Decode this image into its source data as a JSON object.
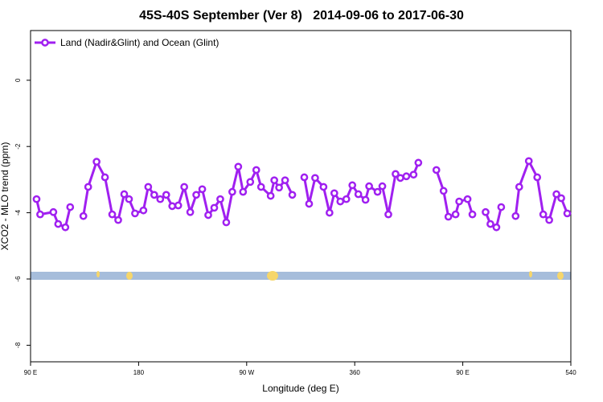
{
  "chart_data": {
    "type": "line",
    "title": "45S-40S September (Ver 8)   2014-09-06 to 2017-06-30",
    "xlabel": "Longitude (deg E)",
    "ylabel": "XCO2 - MLO trend (ppm)",
    "xlim": [
      90,
      540
    ],
    "ylim": [
      -8.5,
      1.5
    ],
    "xticks": [
      {
        "value": 90,
        "label": "90 E"
      },
      180,
      {
        "value": 270,
        "label": "90 W"
      },
      360,
      {
        "value": 450,
        "label": "90 E"
      },
      540
    ],
    "yticks": [
      0,
      -2,
      -4,
      -6,
      -8
    ],
    "legend": "top-left",
    "x": [
      95,
      98,
      109,
      113,
      119,
      123,
      128,
      134,
      138,
      145,
      152,
      158,
      163,
      168,
      172,
      177,
      184,
      188,
      193,
      198,
      203,
      208,
      213,
      218,
      223,
      228,
      233,
      238,
      243,
      248,
      253,
      258,
      263,
      267,
      273,
      278,
      282,
      290,
      293,
      297,
      302,
      308,
      313,
      318,
      322,
      327,
      334,
      339,
      343,
      348,
      353,
      358,
      363,
      369,
      372,
      379,
      383,
      388,
      394,
      398,
      403,
      409,
      413,
      420,
      428,
      434,
      438,
      444,
      447,
      454,
      458,
      463,
      469,
      473,
      478,
      482,
      488,
      494,
      497,
      505,
      512,
      517,
      522,
      528,
      532,
      537
    ],
    "series": [
      {
        "name": "Land (Nadir&Glint) and Ocean (Glint)",
        "color": "#a020f0",
        "values": [
          -3.59,
          -4.05,
          -3.98,
          -4.34,
          -4.44,
          -3.83,
          null,
          -4.1,
          -3.22,
          -2.46,
          -2.93,
          -4.05,
          -4.22,
          -3.44,
          -3.59,
          -4.02,
          -3.93,
          -3.22,
          -3.46,
          -3.59,
          -3.46,
          -3.8,
          -3.78,
          -3.22,
          -3.98,
          -3.46,
          -3.29,
          -4.07,
          -3.85,
          -3.59,
          -4.29,
          -3.37,
          -2.61,
          -3.37,
          -3.07,
          -2.71,
          -3.22,
          -3.49,
          -3.02,
          -3.24,
          -3.02,
          -3.46,
          null,
          -2.93,
          -3.73,
          -2.95,
          -3.22,
          -4.0,
          -3.41,
          -3.66,
          -3.59,
          -3.17,
          -3.44,
          -3.61,
          -3.2,
          -3.37,
          -3.2,
          -4.05,
          -2.83,
          -2.95,
          -2.9,
          -2.85,
          -2.49,
          null,
          -2.71,
          -3.34,
          -4.12,
          -4.05,
          -3.66,
          -3.59,
          -4.05,
          null,
          -3.98,
          -4.34,
          -4.44,
          -3.83,
          null,
          -4.1,
          -3.22,
          -2.44,
          -2.93,
          -4.05,
          -4.22,
          -3.44,
          -3.56,
          -4.02
        ]
      }
    ]
  }
}
